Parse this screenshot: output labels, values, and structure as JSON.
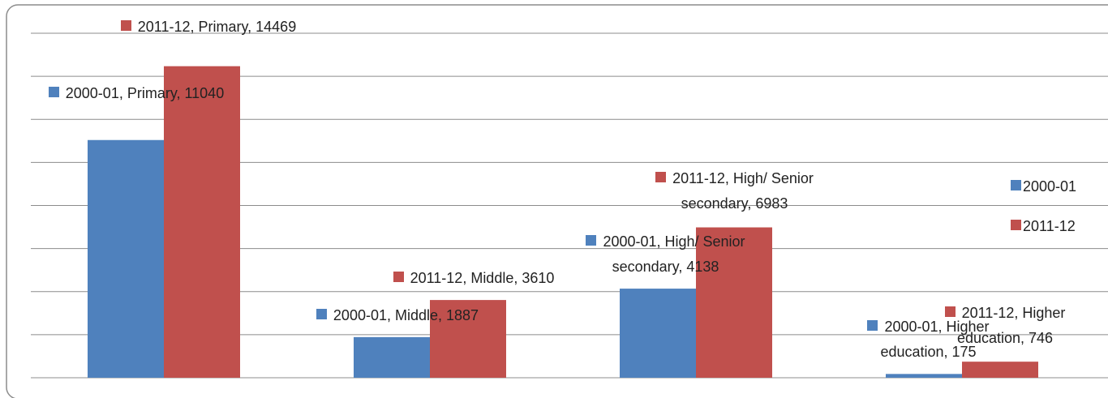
{
  "chart_data": {
    "type": "bar",
    "series": [
      {
        "name": "2000-01",
        "color": "#4f81bd",
        "values": [
          11040,
          1887,
          4138,
          175
        ],
        "value_labels": [
          "2000-01, Primary, 11040",
          "2000-01, Middle, 1887",
          "2000-01, High/ Senior secondary, 4138",
          "2000-01, Higher education, 175"
        ]
      },
      {
        "name": "2011-12",
        "color": "#c0504d",
        "values": [
          14469,
          3610,
          6983,
          746
        ],
        "value_labels": [
          "2011-12, Primary, 14469",
          "2011-12, Middle, 3610",
          "2011-12, High/ Senior secondary, 6983",
          "2011-12, Higher education, 746"
        ]
      }
    ],
    "ylim": [
      0,
      16000
    ],
    "yticks": [
      0,
      2000,
      4000,
      6000,
      8000,
      10000,
      12000,
      14000,
      16000
    ],
    "grid": true,
    "legend": "right"
  }
}
